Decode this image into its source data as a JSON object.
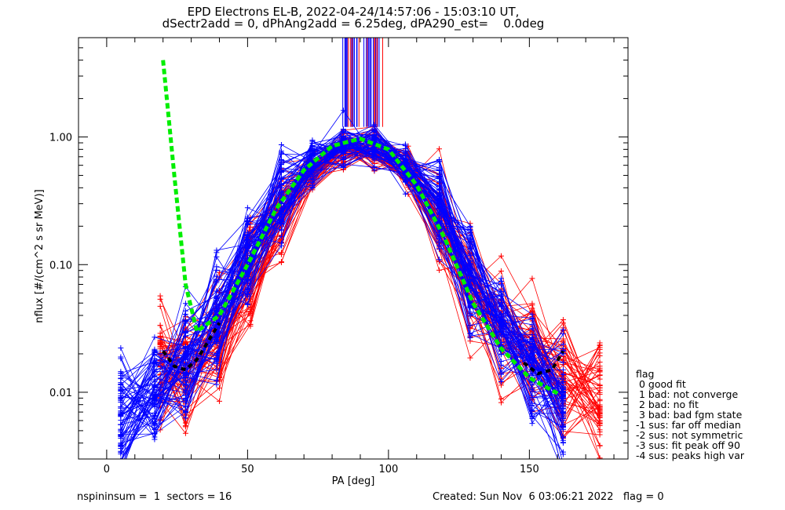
{
  "chart_data": {
    "type": "scatter",
    "title": "EPD Electrons EL-B, 2022-04-24/14:57:06 - 15:03:10 UT,",
    "subtitle": "dSectr2add = 0, dPhAng2add = 6.25deg, dPA290_est=    0.0deg",
    "xlabel": "PA [deg]",
    "ylabel": "nflux [#/(cm^2 s sr MeV)]",
    "xlim": [
      -10,
      185
    ],
    "ylim": [
      0.003,
      6.0
    ],
    "yscale": "log",
    "xticks": [
      0,
      50,
      100,
      150
    ],
    "xtick_labels": [
      "0",
      "50",
      "100",
      "150"
    ],
    "yticks": [
      0.01,
      0.1,
      1.0
    ],
    "ytick_labels": [
      "0.01",
      "0.10",
      "1.00"
    ],
    "grid": false,
    "colors": {
      "red": "#ff0000",
      "blue": "#0000ff",
      "fit": "#00ee00",
      "model": "#000000"
    },
    "series": [
      {
        "color": "red",
        "x": [
          19,
          28,
          40,
          51,
          62,
          73,
          84,
          95,
          107,
          118,
          129,
          140,
          151,
          162,
          175
        ],
        "median": [
          0.016,
          0.015,
          0.025,
          0.08,
          0.25,
          0.55,
          0.82,
          0.82,
          0.55,
          0.22,
          0.07,
          0.03,
          0.02,
          0.012,
          0.009
        ]
      },
      {
        "color": "blue",
        "x": [
          5,
          17,
          28,
          39,
          50,
          62,
          73,
          84,
          95,
          106,
          118,
          129,
          140,
          151,
          162
        ],
        "median": [
          0.006,
          0.01,
          0.016,
          0.04,
          0.12,
          0.35,
          0.65,
          0.85,
          0.85,
          0.6,
          0.28,
          0.09,
          0.035,
          0.015,
          0.009
        ]
      }
    ],
    "fit_curve": {
      "color": "green",
      "x": [
        20,
        24,
        28,
        32,
        40,
        50,
        60,
        70,
        80,
        90,
        100,
        110,
        120,
        130,
        140,
        150,
        160
      ],
      "y": [
        4.0,
        0.5,
        0.07,
        0.03,
        0.04,
        0.1,
        0.27,
        0.55,
        0.85,
        0.97,
        0.8,
        0.42,
        0.16,
        0.05,
        0.022,
        0.013,
        0.0098
      ]
    },
    "model_curve": {
      "color": "black",
      "x": [
        20,
        24,
        28,
        32,
        36,
        40
      ],
      "y": [
        0.021,
        0.016,
        0.015,
        0.018,
        0.025,
        0.035
      ],
      "x2": [
        148,
        153,
        158,
        162
      ],
      "y2": [
        0.017,
        0.014,
        0.015,
        0.021
      ]
    }
  },
  "footer": {
    "left": "nspininsum =  1  sectors = 16",
    "right": "Created: Sun Nov  6 03:06:21 2022   flag = 0"
  },
  "flag_legend": {
    "title": "flag",
    "items": [
      " 0 good fit",
      " 1 bad: not converge",
      " 2 bad: no fit",
      " 3 bad: bad fgm state",
      "-1 sus: far off median",
      "-2 sus: not symmetric",
      "-3 sus: fit peak off 90",
      "-4 sus: peaks high var"
    ]
  }
}
